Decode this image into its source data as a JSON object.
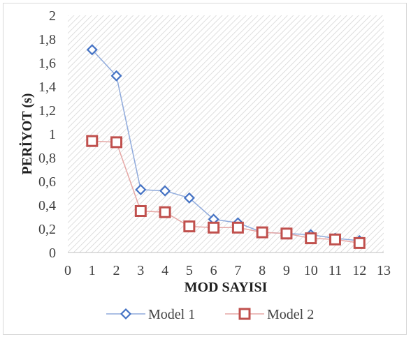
{
  "chart_data": {
    "type": "line",
    "title": "",
    "xlabel": "MOD SAYISI",
    "ylabel": "PERİYOT (s)",
    "xlim": [
      0,
      13
    ],
    "ylim": [
      0,
      2
    ],
    "x_ticks": [
      0,
      1,
      2,
      3,
      4,
      5,
      6,
      7,
      8,
      9,
      10,
      11,
      12,
      13
    ],
    "y_ticks": [
      {
        "value": 0,
        "label": "0"
      },
      {
        "value": 0.2,
        "label": "0,2"
      },
      {
        "value": 0.4,
        "label": "0,4"
      },
      {
        "value": 0.6,
        "label": "0,6"
      },
      {
        "value": 0.8,
        "label": "0,8"
      },
      {
        "value": 1,
        "label": "1"
      },
      {
        "value": 1.2,
        "label": "1,2"
      },
      {
        "value": 1.4,
        "label": "1,4"
      },
      {
        "value": 1.6,
        "label": "1,6"
      },
      {
        "value": 1.8,
        "label": "1,8"
      },
      {
        "value": 2,
        "label": "2"
      }
    ],
    "grid": "hatched-background",
    "legend_position": "bottom",
    "x": [
      1,
      2,
      3,
      4,
      5,
      6,
      7,
      8,
      9,
      10,
      11,
      12
    ],
    "series": [
      {
        "name": "Model 1",
        "marker": "diamond",
        "color": "#4472c4",
        "line_color": "#8faadc",
        "values": [
          1.71,
          1.49,
          0.53,
          0.52,
          0.46,
          0.28,
          0.25,
          0.17,
          0.16,
          0.15,
          0.12,
          0.1
        ]
      },
      {
        "name": "Model 2",
        "marker": "square",
        "color": "#c0504d",
        "line_color": "#e6a7a5",
        "values": [
          0.94,
          0.93,
          0.35,
          0.34,
          0.22,
          0.21,
          0.21,
          0.17,
          0.16,
          0.12,
          0.11,
          0.08
        ]
      }
    ]
  }
}
